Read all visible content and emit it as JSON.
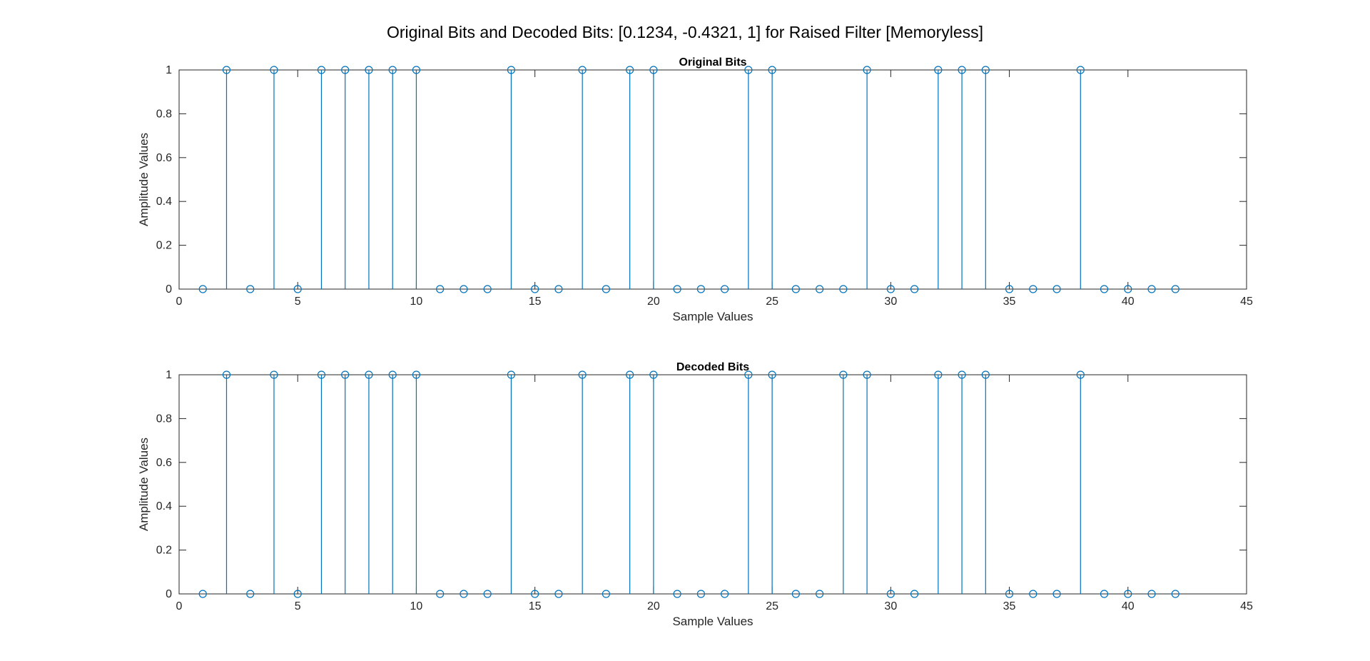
{
  "figure": {
    "title": "Original Bits and Decoded Bits: [0.1234, -0.4321, 1] for Raised Filter [Memoryless]"
  },
  "colors": {
    "stem": "#0072BD",
    "axis": "#262626",
    "background": "#ffffff"
  },
  "chart_data": [
    {
      "type": "stem",
      "title": "Original Bits",
      "xlabel": "Sample Values",
      "ylabel": "Amplitude Values",
      "xlim": [
        0,
        45
      ],
      "ylim": [
        0,
        1
      ],
      "xticks": [
        0,
        5,
        10,
        15,
        20,
        25,
        30,
        35,
        40,
        45
      ],
      "yticks": [
        0,
        0.2,
        0.4,
        0.6,
        0.8,
        1
      ],
      "grid": false,
      "marker": "circle-open",
      "x": [
        1,
        2,
        3,
        4,
        5,
        6,
        7,
        8,
        9,
        10,
        11,
        12,
        13,
        14,
        15,
        16,
        17,
        18,
        19,
        20,
        21,
        22,
        23,
        24,
        25,
        26,
        27,
        28,
        29,
        30,
        31,
        32,
        33,
        34,
        35,
        36,
        37,
        38,
        39,
        40,
        41,
        42
      ],
      "y": [
        0,
        1,
        0,
        1,
        0,
        1,
        1,
        1,
        1,
        1,
        0,
        0,
        0,
        1,
        0,
        0,
        1,
        0,
        1,
        1,
        0,
        0,
        0,
        1,
        1,
        0,
        0,
        0,
        1,
        0,
        0,
        1,
        1,
        1,
        0,
        0,
        0,
        1,
        0,
        0,
        0,
        0
      ]
    },
    {
      "type": "stem",
      "title": "Decoded Bits",
      "xlabel": "Sample Values",
      "ylabel": "Amplitude Values",
      "xlim": [
        0,
        45
      ],
      "ylim": [
        0,
        1
      ],
      "xticks": [
        0,
        5,
        10,
        15,
        20,
        25,
        30,
        35,
        40,
        45
      ],
      "yticks": [
        0,
        0.2,
        0.4,
        0.6,
        0.8,
        1
      ],
      "grid": false,
      "marker": "circle-open",
      "x": [
        1,
        2,
        3,
        4,
        5,
        6,
        7,
        8,
        9,
        10,
        11,
        12,
        13,
        14,
        15,
        16,
        17,
        18,
        19,
        20,
        21,
        22,
        23,
        24,
        25,
        26,
        27,
        28,
        29,
        30,
        31,
        32,
        33,
        34,
        35,
        36,
        37,
        38,
        39,
        40,
        41,
        42
      ],
      "y": [
        0,
        1,
        0,
        1,
        0,
        1,
        1,
        1,
        1,
        1,
        0,
        0,
        0,
        1,
        0,
        0,
        1,
        0,
        1,
        1,
        0,
        0,
        0,
        1,
        1,
        0,
        0,
        1,
        1,
        0,
        0,
        1,
        1,
        1,
        0,
        0,
        0,
        1,
        0,
        0,
        0,
        0
      ]
    }
  ]
}
